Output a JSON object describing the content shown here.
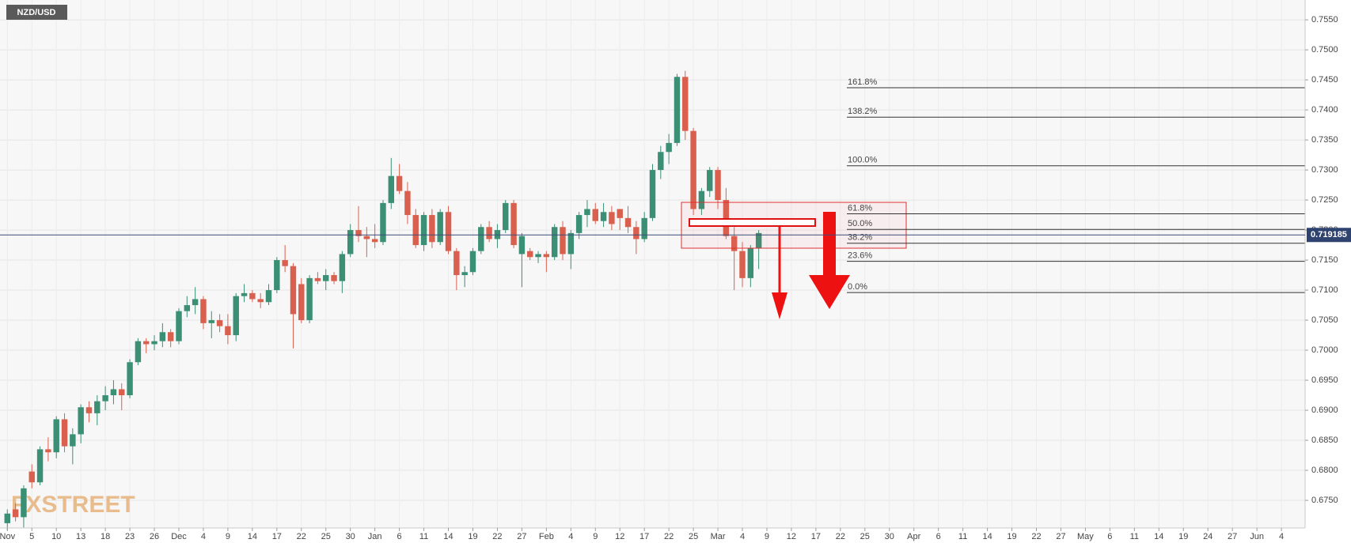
{
  "chart_data": {
    "type": "candlestick",
    "title": "NZD/USD",
    "watermark": "FXSTREET",
    "ylim": [
      0.6704,
      0.7583
    ],
    "yticks": [
      {
        "value": 0.675,
        "label": "0.6750"
      },
      {
        "value": 0.68,
        "label": "0.6800"
      },
      {
        "value": 0.685,
        "label": "0.6850"
      },
      {
        "value": 0.69,
        "label": "0.6900"
      },
      {
        "value": 0.695,
        "label": "0.6950"
      },
      {
        "value": 0.7,
        "label": "0.7000"
      },
      {
        "value": 0.705,
        "label": "0.7050"
      },
      {
        "value": 0.71,
        "label": "0.7100"
      },
      {
        "value": 0.715,
        "label": "0.7150"
      },
      {
        "value": 0.72,
        "label": "0.7200"
      },
      {
        "value": 0.725,
        "label": "0.7250"
      },
      {
        "value": 0.73,
        "label": "0.7300"
      },
      {
        "value": 0.735,
        "label": "0.7350"
      },
      {
        "value": 0.74,
        "label": "0.7400"
      },
      {
        "value": 0.745,
        "label": "0.7450"
      },
      {
        "value": 0.75,
        "label": "0.7500"
      },
      {
        "value": 0.755,
        "label": "0.7550"
      }
    ],
    "xlim": [
      -0.9,
      158.9
    ],
    "xticks": [
      {
        "value": 0,
        "label": "Nov"
      },
      {
        "value": 3,
        "label": "5"
      },
      {
        "value": 6,
        "label": "10"
      },
      {
        "value": 9,
        "label": "13"
      },
      {
        "value": 12,
        "label": "18"
      },
      {
        "value": 15,
        "label": "23"
      },
      {
        "value": 18,
        "label": "26"
      },
      {
        "value": 21,
        "label": "Dec"
      },
      {
        "value": 24,
        "label": "4"
      },
      {
        "value": 27,
        "label": "9"
      },
      {
        "value": 30,
        "label": "14"
      },
      {
        "value": 33,
        "label": "17"
      },
      {
        "value": 36,
        "label": "22"
      },
      {
        "value": 39,
        "label": "25"
      },
      {
        "value": 42,
        "label": "30"
      },
      {
        "value": 45,
        "label": "Jan"
      },
      {
        "value": 48,
        "label": "6"
      },
      {
        "value": 51,
        "label": "11"
      },
      {
        "value": 54,
        "label": "14"
      },
      {
        "value": 57,
        "label": "19"
      },
      {
        "value": 60,
        "label": "22"
      },
      {
        "value": 63,
        "label": "27"
      },
      {
        "value": 66,
        "label": "Feb"
      },
      {
        "value": 69,
        "label": "4"
      },
      {
        "value": 72,
        "label": "9"
      },
      {
        "value": 75,
        "label": "12"
      },
      {
        "value": 78,
        "label": "17"
      },
      {
        "value": 81,
        "label": "22"
      },
      {
        "value": 84,
        "label": "25"
      },
      {
        "value": 87,
        "label": "Mar"
      },
      {
        "value": 90,
        "label": "4"
      },
      {
        "value": 93,
        "label": "9"
      },
      {
        "value": 96,
        "label": "12"
      },
      {
        "value": 99,
        "label": "17"
      },
      {
        "value": 102,
        "label": "22"
      },
      {
        "value": 105,
        "label": "25"
      },
      {
        "value": 108,
        "label": "30"
      },
      {
        "value": 111,
        "label": "Apr"
      },
      {
        "value": 114,
        "label": "6"
      },
      {
        "value": 117,
        "label": "11"
      },
      {
        "value": 120,
        "label": "14"
      },
      {
        "value": 123,
        "label": "19"
      },
      {
        "value": 126,
        "label": "22"
      },
      {
        "value": 129,
        "label": "27"
      },
      {
        "value": 132,
        "label": "May"
      },
      {
        "value": 135,
        "label": "6"
      },
      {
        "value": 138,
        "label": "11"
      },
      {
        "value": 141,
        "label": "14"
      },
      {
        "value": 144,
        "label": "19"
      },
      {
        "value": 147,
        "label": "24"
      },
      {
        "value": 150,
        "label": "27"
      },
      {
        "value": 153,
        "label": "Jun"
      },
      {
        "value": 156,
        "label": "4"
      }
    ],
    "up_color": "#3b8f75",
    "down_color": "#d9604e",
    "grid": true,
    "last_price": 0.719185,
    "fib_levels": [
      {
        "label": "161.8%",
        "price": 0.7437
      },
      {
        "label": "138.2%",
        "price": 0.7388
      },
      {
        "label": "100.0%",
        "price": 0.7307
      },
      {
        "label": "61.8%",
        "price": 0.7227
      },
      {
        "label": "50.0%",
        "price": 0.7201
      },
      {
        "label": "38.2%",
        "price": 0.7178
      },
      {
        "label": "23.6%",
        "price": 0.7148
      },
      {
        "label": "0.0%",
        "price": 0.7096
      }
    ],
    "open": [
      0.6712,
      0.6735,
      0.6722,
      0.6798,
      0.678,
      0.6835,
      0.683,
      0.6885,
      0.684,
      0.686,
      0.6905,
      0.6895,
      0.6915,
      0.6925,
      0.6935,
      0.6925,
      0.698,
      0.7015,
      0.701,
      0.7015,
      0.703,
      0.7015,
      0.7065,
      0.7075,
      0.7085,
      0.7045,
      0.705,
      0.704,
      0.7025,
      0.709,
      0.7095,
      0.7085,
      0.708,
      0.71,
      0.715,
      0.714,
      0.711,
      0.705,
      0.712,
      0.7115,
      0.7125,
      0.7115,
      0.716,
      0.72,
      0.719,
      0.7185,
      0.718,
      0.7245,
      0.729,
      0.7265,
      0.7225,
      0.7175,
      0.7225,
      0.718,
      0.723,
      0.7165,
      0.7125,
      0.713,
      0.7165,
      0.7205,
      0.7185,
      0.72,
      0.7245,
      0.716,
      0.7165,
      0.7155,
      0.716,
      0.7155,
      0.7205,
      0.716,
      0.7195,
      0.7225,
      0.7235,
      0.7215,
      0.723,
      0.7235,
      0.722,
      0.7205,
      0.7185,
      0.722,
      0.73,
      0.733,
      0.7345,
      0.7455,
      0.7365,
      0.7235,
      0.7265,
      0.73,
      0.725,
      0.719,
      0.7165,
      0.712,
      0.717
    ],
    "high": [
      0.6735,
      0.6745,
      0.6775,
      0.681,
      0.684,
      0.6855,
      0.689,
      0.6895,
      0.687,
      0.691,
      0.6915,
      0.6925,
      0.694,
      0.695,
      0.6945,
      0.6985,
      0.702,
      0.702,
      0.7025,
      0.7045,
      0.7035,
      0.707,
      0.709,
      0.7105,
      0.709,
      0.7065,
      0.706,
      0.706,
      0.7095,
      0.711,
      0.71,
      0.7095,
      0.711,
      0.7155,
      0.7175,
      0.7145,
      0.712,
      0.7125,
      0.713,
      0.7135,
      0.713,
      0.7165,
      0.721,
      0.724,
      0.7205,
      0.721,
      0.725,
      0.732,
      0.731,
      0.728,
      0.7235,
      0.723,
      0.7235,
      0.7235,
      0.724,
      0.717,
      0.714,
      0.717,
      0.721,
      0.7215,
      0.721,
      0.725,
      0.725,
      0.7195,
      0.717,
      0.7165,
      0.7165,
      0.721,
      0.7215,
      0.72,
      0.723,
      0.725,
      0.7245,
      0.7245,
      0.724,
      0.7235,
      0.724,
      0.7215,
      0.723,
      0.731,
      0.734,
      0.736,
      0.746,
      0.7465,
      0.737,
      0.727,
      0.7305,
      0.7305,
      0.727,
      0.7205,
      0.718,
      0.7175,
      0.72
    ],
    "low": [
      0.67,
      0.6715,
      0.6705,
      0.677,
      0.6775,
      0.6815,
      0.682,
      0.683,
      0.681,
      0.6845,
      0.688,
      0.6875,
      0.69,
      0.691,
      0.69,
      0.692,
      0.6975,
      0.6995,
      0.7,
      0.7005,
      0.7005,
      0.701,
      0.7055,
      0.706,
      0.7035,
      0.702,
      0.703,
      0.701,
      0.7015,
      0.708,
      0.708,
      0.707,
      0.7075,
      0.7095,
      0.713,
      0.7003,
      0.7045,
      0.7045,
      0.711,
      0.71,
      0.711,
      0.7095,
      0.7155,
      0.718,
      0.7155,
      0.717,
      0.7175,
      0.7235,
      0.726,
      0.721,
      0.717,
      0.7165,
      0.717,
      0.7175,
      0.716,
      0.71,
      0.7105,
      0.7125,
      0.716,
      0.718,
      0.717,
      0.7195,
      0.717,
      0.7105,
      0.715,
      0.7145,
      0.713,
      0.715,
      0.715,
      0.7135,
      0.7185,
      0.7205,
      0.721,
      0.7205,
      0.72,
      0.72,
      0.7195,
      0.716,
      0.718,
      0.7215,
      0.7285,
      0.731,
      0.734,
      0.735,
      0.7225,
      0.7225,
      0.7255,
      0.7235,
      0.7185,
      0.71,
      0.7105,
      0.7105,
      0.7135
    ],
    "close": [
      0.6728,
      0.6722,
      0.677,
      0.678,
      0.6835,
      0.683,
      0.6885,
      0.684,
      0.686,
      0.6905,
      0.6895,
      0.6915,
      0.6925,
      0.6935,
      0.6925,
      0.698,
      0.7015,
      0.701,
      0.7015,
      0.703,
      0.7015,
      0.7065,
      0.7075,
      0.7085,
      0.7045,
      0.705,
      0.704,
      0.7025,
      0.709,
      0.7095,
      0.7085,
      0.708,
      0.71,
      0.715,
      0.714,
      0.706,
      0.705,
      0.712,
      0.7115,
      0.7125,
      0.7115,
      0.716,
      0.72,
      0.719,
      0.7185,
      0.718,
      0.7245,
      0.729,
      0.7265,
      0.7225,
      0.7175,
      0.7225,
      0.718,
      0.723,
      0.7165,
      0.7125,
      0.713,
      0.7165,
      0.7205,
      0.7185,
      0.72,
      0.7245,
      0.7175,
      0.719,
      0.7155,
      0.716,
      0.7155,
      0.7205,
      0.716,
      0.7195,
      0.7225,
      0.7235,
      0.7215,
      0.723,
      0.721,
      0.722,
      0.7205,
      0.7185,
      0.722,
      0.73,
      0.733,
      0.7345,
      0.7455,
      0.7365,
      0.7235,
      0.7265,
      0.73,
      0.725,
      0.719,
      0.7165,
      0.712,
      0.717,
      0.7195
    ]
  }
}
